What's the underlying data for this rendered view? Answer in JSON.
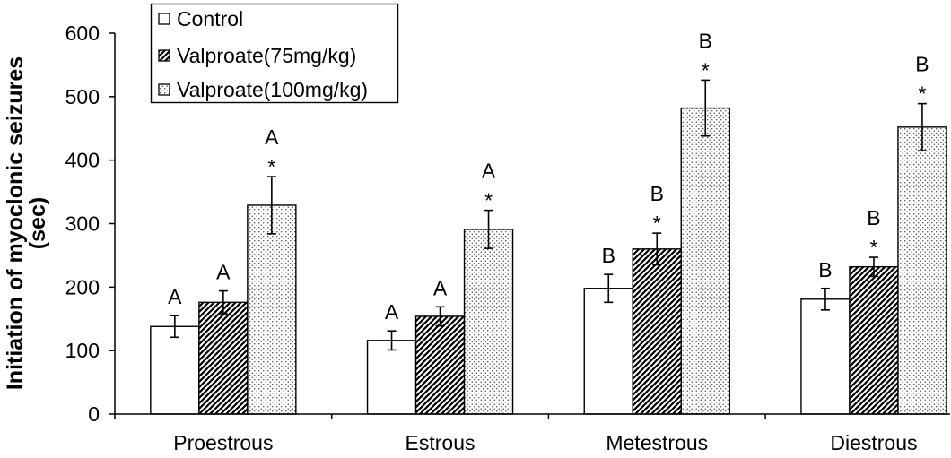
{
  "chart_data": {
    "type": "bar",
    "categories": [
      "Proestrous",
      "Estrous",
      "Metestrous",
      "Diestrous"
    ],
    "ylabel": [
      "Initiation of myoclonic seizures",
      "(sec)"
    ],
    "ylim": [
      0,
      600
    ],
    "yticks": [
      0,
      100,
      200,
      300,
      400,
      500,
      600
    ],
    "grid": false,
    "legend": "top-left",
    "series": [
      {
        "name": "Control",
        "pattern": "white",
        "values": [
          138,
          116,
          198,
          181
        ],
        "errors": [
          17,
          15,
          22,
          17
        ],
        "group_letters": [
          "A",
          "A",
          "B",
          "B"
        ],
        "significance": [
          "",
          "",
          "",
          ""
        ]
      },
      {
        "name": "Valproate(75mg/kg)",
        "pattern": "diagonal-hatch",
        "values": [
          176,
          154,
          260,
          232
        ],
        "errors": [
          18,
          15,
          25,
          15
        ],
        "group_letters": [
          "A",
          "A",
          "B",
          "B"
        ],
        "significance": [
          "",
          "",
          "*",
          "*"
        ]
      },
      {
        "name": "Valproate(100mg/kg)",
        "pattern": "dots",
        "values": [
          329,
          291,
          482,
          452
        ],
        "errors": [
          45,
          30,
          44,
          37
        ],
        "group_letters": [
          "A",
          "A",
          "B",
          "B"
        ],
        "significance": [
          "*",
          "*",
          "*",
          "*"
        ]
      }
    ]
  }
}
